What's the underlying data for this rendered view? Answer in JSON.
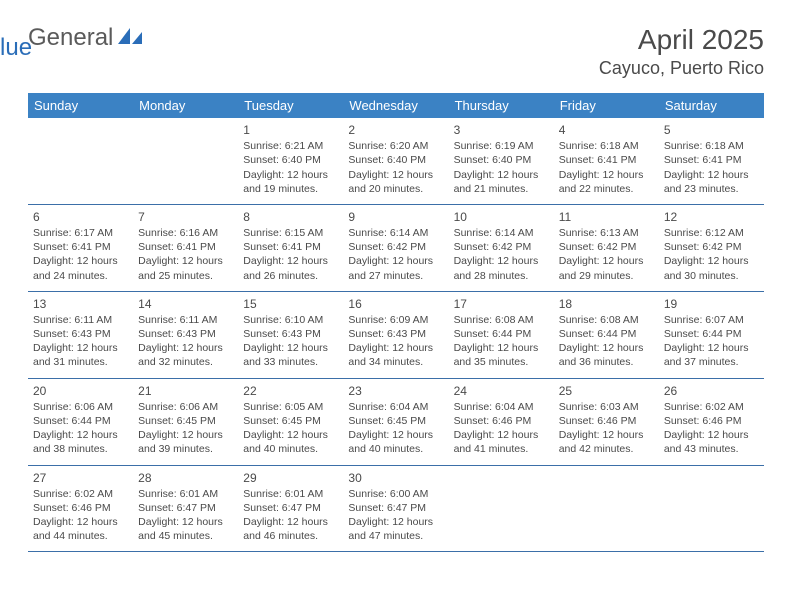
{
  "brand": {
    "text_general": "General",
    "text_blue": "Blue",
    "icon_fill": "#2a6db8"
  },
  "header": {
    "month_title": "April 2025",
    "location": "Cayuco, Puerto Rico"
  },
  "colors": {
    "header_bg": "#3b82c4",
    "header_text": "#ffffff",
    "week_border": "#3b6fa8",
    "body_text": "#4a4a4a",
    "background": "#ffffff"
  },
  "day_headers": [
    "Sunday",
    "Monday",
    "Tuesday",
    "Wednesday",
    "Thursday",
    "Friday",
    "Saturday"
  ],
  "weeks": [
    [
      null,
      null,
      {
        "n": "1",
        "sr": "Sunrise: 6:21 AM",
        "ss": "Sunset: 6:40 PM",
        "d1": "Daylight: 12 hours",
        "d2": "and 19 minutes."
      },
      {
        "n": "2",
        "sr": "Sunrise: 6:20 AM",
        "ss": "Sunset: 6:40 PM",
        "d1": "Daylight: 12 hours",
        "d2": "and 20 minutes."
      },
      {
        "n": "3",
        "sr": "Sunrise: 6:19 AM",
        "ss": "Sunset: 6:40 PM",
        "d1": "Daylight: 12 hours",
        "d2": "and 21 minutes."
      },
      {
        "n": "4",
        "sr": "Sunrise: 6:18 AM",
        "ss": "Sunset: 6:41 PM",
        "d1": "Daylight: 12 hours",
        "d2": "and 22 minutes."
      },
      {
        "n": "5",
        "sr": "Sunrise: 6:18 AM",
        "ss": "Sunset: 6:41 PM",
        "d1": "Daylight: 12 hours",
        "d2": "and 23 minutes."
      }
    ],
    [
      {
        "n": "6",
        "sr": "Sunrise: 6:17 AM",
        "ss": "Sunset: 6:41 PM",
        "d1": "Daylight: 12 hours",
        "d2": "and 24 minutes."
      },
      {
        "n": "7",
        "sr": "Sunrise: 6:16 AM",
        "ss": "Sunset: 6:41 PM",
        "d1": "Daylight: 12 hours",
        "d2": "and 25 minutes."
      },
      {
        "n": "8",
        "sr": "Sunrise: 6:15 AM",
        "ss": "Sunset: 6:41 PM",
        "d1": "Daylight: 12 hours",
        "d2": "and 26 minutes."
      },
      {
        "n": "9",
        "sr": "Sunrise: 6:14 AM",
        "ss": "Sunset: 6:42 PM",
        "d1": "Daylight: 12 hours",
        "d2": "and 27 minutes."
      },
      {
        "n": "10",
        "sr": "Sunrise: 6:14 AM",
        "ss": "Sunset: 6:42 PM",
        "d1": "Daylight: 12 hours",
        "d2": "and 28 minutes."
      },
      {
        "n": "11",
        "sr": "Sunrise: 6:13 AM",
        "ss": "Sunset: 6:42 PM",
        "d1": "Daylight: 12 hours",
        "d2": "and 29 minutes."
      },
      {
        "n": "12",
        "sr": "Sunrise: 6:12 AM",
        "ss": "Sunset: 6:42 PM",
        "d1": "Daylight: 12 hours",
        "d2": "and 30 minutes."
      }
    ],
    [
      {
        "n": "13",
        "sr": "Sunrise: 6:11 AM",
        "ss": "Sunset: 6:43 PM",
        "d1": "Daylight: 12 hours",
        "d2": "and 31 minutes."
      },
      {
        "n": "14",
        "sr": "Sunrise: 6:11 AM",
        "ss": "Sunset: 6:43 PM",
        "d1": "Daylight: 12 hours",
        "d2": "and 32 minutes."
      },
      {
        "n": "15",
        "sr": "Sunrise: 6:10 AM",
        "ss": "Sunset: 6:43 PM",
        "d1": "Daylight: 12 hours",
        "d2": "and 33 minutes."
      },
      {
        "n": "16",
        "sr": "Sunrise: 6:09 AM",
        "ss": "Sunset: 6:43 PM",
        "d1": "Daylight: 12 hours",
        "d2": "and 34 minutes."
      },
      {
        "n": "17",
        "sr": "Sunrise: 6:08 AM",
        "ss": "Sunset: 6:44 PM",
        "d1": "Daylight: 12 hours",
        "d2": "and 35 minutes."
      },
      {
        "n": "18",
        "sr": "Sunrise: 6:08 AM",
        "ss": "Sunset: 6:44 PM",
        "d1": "Daylight: 12 hours",
        "d2": "and 36 minutes."
      },
      {
        "n": "19",
        "sr": "Sunrise: 6:07 AM",
        "ss": "Sunset: 6:44 PM",
        "d1": "Daylight: 12 hours",
        "d2": "and 37 minutes."
      }
    ],
    [
      {
        "n": "20",
        "sr": "Sunrise: 6:06 AM",
        "ss": "Sunset: 6:44 PM",
        "d1": "Daylight: 12 hours",
        "d2": "and 38 minutes."
      },
      {
        "n": "21",
        "sr": "Sunrise: 6:06 AM",
        "ss": "Sunset: 6:45 PM",
        "d1": "Daylight: 12 hours",
        "d2": "and 39 minutes."
      },
      {
        "n": "22",
        "sr": "Sunrise: 6:05 AM",
        "ss": "Sunset: 6:45 PM",
        "d1": "Daylight: 12 hours",
        "d2": "and 40 minutes."
      },
      {
        "n": "23",
        "sr": "Sunrise: 6:04 AM",
        "ss": "Sunset: 6:45 PM",
        "d1": "Daylight: 12 hours",
        "d2": "and 40 minutes."
      },
      {
        "n": "24",
        "sr": "Sunrise: 6:04 AM",
        "ss": "Sunset: 6:46 PM",
        "d1": "Daylight: 12 hours",
        "d2": "and 41 minutes."
      },
      {
        "n": "25",
        "sr": "Sunrise: 6:03 AM",
        "ss": "Sunset: 6:46 PM",
        "d1": "Daylight: 12 hours",
        "d2": "and 42 minutes."
      },
      {
        "n": "26",
        "sr": "Sunrise: 6:02 AM",
        "ss": "Sunset: 6:46 PM",
        "d1": "Daylight: 12 hours",
        "d2": "and 43 minutes."
      }
    ],
    [
      {
        "n": "27",
        "sr": "Sunrise: 6:02 AM",
        "ss": "Sunset: 6:46 PM",
        "d1": "Daylight: 12 hours",
        "d2": "and 44 minutes."
      },
      {
        "n": "28",
        "sr": "Sunrise: 6:01 AM",
        "ss": "Sunset: 6:47 PM",
        "d1": "Daylight: 12 hours",
        "d2": "and 45 minutes."
      },
      {
        "n": "29",
        "sr": "Sunrise: 6:01 AM",
        "ss": "Sunset: 6:47 PM",
        "d1": "Daylight: 12 hours",
        "d2": "and 46 minutes."
      },
      {
        "n": "30",
        "sr": "Sunrise: 6:00 AM",
        "ss": "Sunset: 6:47 PM",
        "d1": "Daylight: 12 hours",
        "d2": "and 47 minutes."
      },
      null,
      null,
      null
    ]
  ]
}
